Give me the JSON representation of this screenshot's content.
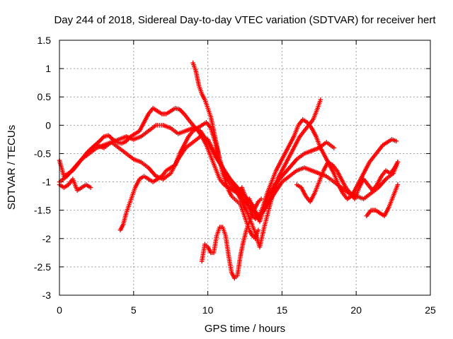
{
  "chart_data": {
    "type": "scatter",
    "title": "Day 244 of 2018, Sidereal Day-to-day VTEC variation (SDTVAR) for receiver hert",
    "xlabel": "GPS time / hours",
    "ylabel": "SDTVAR / TECUs",
    "xlim": [
      0,
      25
    ],
    "ylim": [
      -3,
      1.5
    ],
    "xticks": [
      0,
      5,
      10,
      15,
      20,
      25
    ],
    "xtick_labels": [
      "0",
      "5",
      "10",
      "15",
      "20",
      "25"
    ],
    "yticks": [
      -3,
      -2.5,
      -2,
      -1.5,
      -1,
      -0.5,
      0,
      0.5,
      1,
      1.5
    ],
    "ytick_labels": [
      "-3",
      "-2.5",
      "-2",
      "-1.5",
      "-1",
      "-0.5",
      "0",
      "0.5",
      "1",
      "1.5"
    ],
    "grid": true,
    "marker": "+",
    "color": "#ff0000",
    "series": [
      {
        "name": "s1",
        "x": [
          0.0,
          0.3,
          0.6,
          0.9,
          1.2,
          1.5,
          1.8,
          2.1
        ],
        "y": [
          -1.05,
          -1.1,
          -1.05,
          -0.95,
          -1.15,
          -1.1,
          -1.05,
          -1.1
        ]
      },
      {
        "name": "s2",
        "x": [
          0.0,
          0.3,
          0.6,
          0.9,
          1.2,
          1.5,
          1.8,
          2.1,
          2.4,
          2.7,
          3.0,
          3.3,
          3.6,
          3.9,
          4.2,
          4.5,
          4.8,
          5.1,
          5.4,
          5.7,
          6.0,
          6.3,
          6.6,
          6.9,
          7.2,
          7.5,
          7.8,
          8.1,
          8.4,
          8.7,
          9.0,
          9.3,
          9.6,
          9.9,
          10.2,
          10.5,
          10.8,
          11.1,
          11.4,
          11.7,
          12.0,
          12.3,
          12.6,
          12.9,
          13.2,
          13.5,
          13.8,
          14.1,
          14.4,
          14.7
        ],
        "y": [
          -0.62,
          -0.9,
          -0.85,
          -0.8,
          -0.7,
          -0.6,
          -0.5,
          -0.42,
          -0.35,
          -0.28,
          -0.2,
          -0.18,
          -0.25,
          -0.3,
          -0.32,
          -0.28,
          -0.2,
          -0.15,
          -0.1,
          0.05,
          0.2,
          0.3,
          0.25,
          0.2,
          0.2,
          0.25,
          0.3,
          0.28,
          0.2,
          0.1,
          0.0,
          -0.08,
          -0.2,
          -0.35,
          -0.55,
          -0.75,
          -0.95,
          -1.05,
          -1.1,
          -1.15,
          -1.2,
          -1.1,
          -1.3,
          -1.55,
          -1.65,
          -1.6,
          -1.5,
          -1.35,
          -1.2,
          -1.0
        ]
      },
      {
        "name": "s3",
        "x": [
          0.0,
          0.5,
          1.0,
          1.5,
          2.0,
          2.5,
          3.0,
          3.5,
          4.0,
          4.5,
          5.0,
          5.5,
          6.0,
          6.5,
          7.0,
          7.5,
          8.0,
          8.5,
          9.0,
          9.5,
          10.0,
          10.5,
          11.0,
          11.5,
          12.0,
          12.5,
          13.0,
          13.5,
          14.0,
          14.5,
          15.0,
          15.5,
          16.0,
          16.5,
          17.0,
          17.5,
          18.0,
          18.5
        ],
        "y": [
          -1.0,
          -0.9,
          -0.75,
          -0.6,
          -0.5,
          -0.4,
          -0.35,
          -0.3,
          -0.25,
          -0.2,
          -0.25,
          -0.2,
          -0.1,
          0.0,
          0.0,
          -0.05,
          -0.15,
          -0.1,
          -0.05,
          -0.1,
          -0.3,
          -0.55,
          -0.75,
          -0.95,
          -1.1,
          -1.25,
          -1.4,
          -1.7,
          -1.3,
          -1.05,
          -0.9,
          -0.75,
          -0.6,
          -0.5,
          -0.45,
          -0.4,
          -0.3,
          -0.4
        ]
      },
      {
        "name": "s4",
        "x": [
          2.5,
          3.0,
          3.5,
          4.0,
          4.5,
          5.0,
          5.5,
          6.0,
          6.5,
          7.0,
          7.5,
          8.0,
          8.5,
          9.0,
          9.5,
          10.0,
          10.5,
          11.0,
          11.5,
          12.0,
          12.5,
          13.0,
          13.5,
          14.0,
          14.5,
          15.0,
          15.5,
          16.0,
          16.5,
          17.0,
          17.5,
          18.0,
          18.5,
          19.0,
          19.5,
          20.0,
          20.5,
          21.0,
          21.5,
          22.0,
          22.5,
          22.8
        ],
        "y": [
          -0.35,
          -0.4,
          -0.3,
          -0.4,
          -0.5,
          -0.6,
          -0.65,
          -0.75,
          -0.9,
          -0.95,
          -0.85,
          -0.6,
          -0.4,
          -0.3,
          -0.2,
          -0.25,
          -0.5,
          -0.75,
          -0.95,
          -1.15,
          -1.35,
          -1.5,
          -1.6,
          -1.4,
          -1.2,
          -1.0,
          -0.9,
          -0.8,
          -0.75,
          -0.8,
          -0.85,
          -0.9,
          -1.0,
          -1.1,
          -1.2,
          -1.25,
          -1.3,
          -1.2,
          -1.1,
          -0.95,
          -0.85,
          -0.65
        ]
      },
      {
        "name": "s5",
        "x": [
          4.1,
          4.3,
          4.5,
          4.7,
          4.9,
          5.1,
          5.4,
          5.7,
          6.0,
          6.3,
          6.6,
          6.9,
          7.2,
          7.5,
          7.8,
          8.1,
          8.4,
          8.7,
          9.0,
          9.3,
          9.6,
          9.9,
          10.2,
          10.5,
          10.8,
          11.1,
          11.4,
          11.7,
          12.0,
          12.3,
          12.6,
          12.9,
          13.2,
          13.5,
          13.8,
          14.1,
          14.4,
          14.7,
          15.0,
          15.3,
          15.6,
          15.9,
          16.2,
          16.5,
          16.8,
          17.1,
          17.4,
          17.6
        ],
        "y": [
          -1.85,
          -1.75,
          -1.55,
          -1.4,
          -1.25,
          -1.1,
          -0.95,
          -0.9,
          -0.95,
          -1.0,
          -0.95,
          -0.9,
          -0.8,
          -0.75,
          -0.7,
          -0.5,
          -0.35,
          -0.2,
          -0.1,
          -0.05,
          0.0,
          0.05,
          -0.05,
          -0.3,
          -0.6,
          -0.85,
          -1.0,
          -1.1,
          -1.2,
          -1.35,
          -1.5,
          -1.7,
          -1.9,
          -2.15,
          -1.8,
          -1.5,
          -1.2,
          -0.95,
          -0.8,
          -0.65,
          -0.5,
          -0.35,
          -0.2,
          -0.1,
          0.0,
          0.1,
          0.3,
          0.45
        ]
      },
      {
        "name": "s6",
        "x": [
          9.0,
          9.2,
          9.4,
          9.6,
          9.8,
          10.0,
          10.2,
          10.4,
          10.6,
          10.8,
          11.0,
          11.2,
          11.4,
          11.6,
          11.8,
          12.0,
          12.2,
          12.4,
          12.6,
          12.8,
          13.0,
          13.2,
          13.4
        ],
        "y": [
          1.1,
          0.95,
          0.7,
          0.55,
          0.45,
          0.3,
          0.15,
          -0.1,
          -0.35,
          -0.6,
          -0.85,
          -1.0,
          -1.15,
          -1.25,
          -1.3,
          -1.35,
          -1.4,
          -1.55,
          -1.7,
          -1.85,
          -1.95,
          -2.0,
          -1.85
        ]
      },
      {
        "name": "s7",
        "x": [
          9.6,
          9.8,
          10.0,
          10.2,
          10.4,
          10.6,
          10.8,
          11.0,
          11.2,
          11.4,
          11.6,
          11.8,
          12.0,
          12.2,
          12.4,
          12.6,
          12.8,
          13.0,
          13.2,
          13.4,
          13.6
        ],
        "y": [
          -2.4,
          -2.1,
          -2.15,
          -2.25,
          -2.25,
          -1.95,
          -1.8,
          -1.8,
          -1.95,
          -2.3,
          -2.6,
          -2.7,
          -2.65,
          -2.3,
          -2.05,
          -1.85,
          -1.7,
          -1.55,
          -1.45,
          -1.35,
          -1.3
        ]
      },
      {
        "name": "s8",
        "x": [
          12.8,
          13.1,
          13.4,
          13.7,
          14.0,
          14.3,
          14.6,
          14.9,
          15.2,
          15.5,
          15.8,
          16.1,
          16.4,
          16.7,
          17.0,
          17.3,
          17.6,
          17.9,
          18.2,
          18.5,
          18.8,
          19.1,
          19.4,
          19.7,
          20.0,
          20.3,
          20.6,
          20.9,
          21.2,
          21.5,
          21.8,
          22.1,
          22.4,
          22.7
        ],
        "y": [
          -1.3,
          -1.5,
          -1.65,
          -1.45,
          -1.2,
          -1.0,
          -0.8,
          -0.65,
          -0.5,
          -0.35,
          -0.2,
          0.0,
          0.1,
          0.05,
          -0.05,
          -0.2,
          -0.4,
          -0.55,
          -0.7,
          -0.85,
          -1.05,
          -1.2,
          -1.3,
          -1.25,
          -1.1,
          -0.95,
          -0.8,
          -0.65,
          -0.55,
          -0.45,
          -0.35,
          -0.3,
          -0.25,
          -0.28
        ]
      },
      {
        "name": "s9",
        "x": [
          16.0,
          16.3,
          16.6,
          16.9,
          17.2,
          17.5,
          17.8,
          18.1,
          18.4,
          18.7,
          19.0,
          19.3,
          19.6,
          19.9,
          20.2,
          20.5,
          20.8,
          21.1,
          21.4,
          21.7,
          22.0,
          22.3,
          22.6,
          22.8
        ],
        "y": [
          -1.05,
          -1.1,
          -1.25,
          -1.35,
          -1.2,
          -1.0,
          -0.8,
          -0.65,
          -0.7,
          -0.8,
          -0.95,
          -1.1,
          -1.2,
          -1.3,
          -1.1,
          -0.95,
          -1.05,
          -1.15,
          -1.05,
          -0.9,
          -0.8,
          -0.85,
          -0.75,
          -0.65
        ]
      },
      {
        "name": "s10",
        "x": [
          20.7,
          21.0,
          21.3,
          21.6,
          21.9,
          22.2,
          22.5,
          22.8
        ],
        "y": [
          -1.6,
          -1.5,
          -1.5,
          -1.55,
          -1.6,
          -1.45,
          -1.25,
          -1.05
        ]
      }
    ]
  }
}
